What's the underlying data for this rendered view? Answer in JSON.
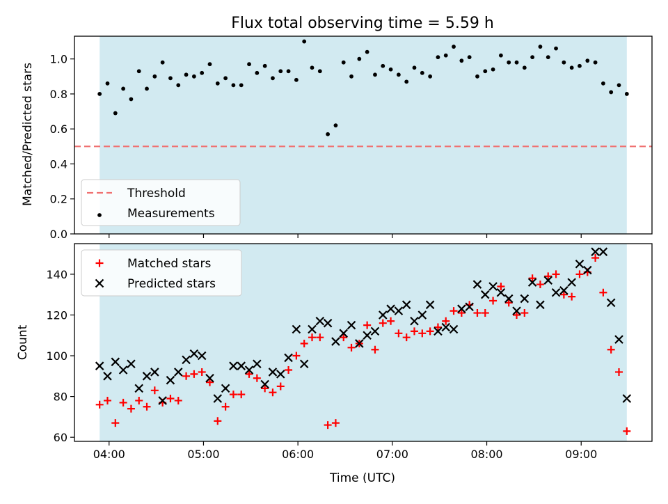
{
  "chart_data": [
    {
      "type": "scatter",
      "title": "Flux total observing time = 5.59 h",
      "xlabel": "",
      "ylabel": "Matched/Predicted stars",
      "ylim": [
        0,
        1.13
      ],
      "yticks": [
        "0.0",
        "0.2",
        "0.4",
        "0.6",
        "0.8",
        "1.0"
      ],
      "shaded_span": [
        "03:54",
        "09:29"
      ],
      "threshold": {
        "name": "Threshold",
        "value": 0.5,
        "color": "#f07070",
        "style": "dashed"
      },
      "series": [
        {
          "name": "Measurements",
          "color": "#000000",
          "marker": "dot",
          "x": [
            "03:54",
            "03:59",
            "04:04",
            "04:09",
            "04:14",
            "04:19",
            "04:24",
            "04:29",
            "04:34",
            "04:39",
            "04:44",
            "04:49",
            "04:54",
            "04:59",
            "05:04",
            "05:09",
            "05:14",
            "05:19",
            "05:24",
            "05:29",
            "05:34",
            "05:39",
            "05:44",
            "05:49",
            "05:54",
            "05:59",
            "06:04",
            "06:09",
            "06:14",
            "06:19",
            "06:24",
            "06:29",
            "06:34",
            "06:39",
            "06:44",
            "06:49",
            "06:54",
            "06:59",
            "07:04",
            "07:09",
            "07:14",
            "07:19",
            "07:24",
            "07:29",
            "07:34",
            "07:39",
            "07:44",
            "07:49",
            "07:54",
            "07:59",
            "08:04",
            "08:09",
            "08:14",
            "08:19",
            "08:24",
            "08:29",
            "08:34",
            "08:39",
            "08:44",
            "08:49",
            "08:54",
            "08:59",
            "09:04",
            "09:09",
            "09:14",
            "09:19",
            "09:24",
            "09:29"
          ],
          "y": [
            0.8,
            0.86,
            0.69,
            0.83,
            0.77,
            0.93,
            0.83,
            0.9,
            0.98,
            0.89,
            0.85,
            0.91,
            0.9,
            0.92,
            0.97,
            0.86,
            0.89,
            0.85,
            0.85,
            0.97,
            0.92,
            0.96,
            0.89,
            0.93,
            0.93,
            0.88,
            1.1,
            0.95,
            0.93,
            0.57,
            0.62,
            0.98,
            0.9,
            1.0,
            1.04,
            0.91,
            0.96,
            0.94,
            0.91,
            0.87,
            0.95,
            0.92,
            0.9,
            1.01,
            1.02,
            1.07,
            0.99,
            1.01,
            0.9,
            0.93,
            0.94,
            1.02,
            0.98,
            0.98,
            0.95,
            1.01,
            1.07,
            1.01,
            1.06,
            0.98,
            0.95,
            0.96,
            0.99,
            0.98,
            0.86,
            0.81,
            0.85,
            0.8
          ]
        }
      ],
      "legend": {
        "position": "lower-left",
        "entries": [
          "Threshold",
          "Measurements"
        ]
      },
      "grid": false
    },
    {
      "type": "scatter",
      "title": "",
      "xlabel": "Time (UTC)",
      "ylabel": "Count",
      "ylim": [
        58,
        155
      ],
      "yticks": [
        "60",
        "80",
        "100",
        "120",
        "140"
      ],
      "xticks": [
        "04:00",
        "05:00",
        "06:00",
        "07:00",
        "08:00",
        "09:00"
      ],
      "shaded_span": [
        "03:54",
        "09:29"
      ],
      "series": [
        {
          "name": "Matched stars",
          "color": "#ff0000",
          "marker": "plus",
          "x": [
            "03:54",
            "03:59",
            "04:04",
            "04:09",
            "04:14",
            "04:19",
            "04:24",
            "04:29",
            "04:34",
            "04:39",
            "04:44",
            "04:49",
            "04:54",
            "04:59",
            "05:04",
            "05:09",
            "05:14",
            "05:19",
            "05:24",
            "05:29",
            "05:34",
            "05:39",
            "05:44",
            "05:49",
            "05:54",
            "05:59",
            "06:04",
            "06:09",
            "06:14",
            "06:19",
            "06:24",
            "06:29",
            "06:34",
            "06:39",
            "06:44",
            "06:49",
            "06:54",
            "06:59",
            "07:04",
            "07:09",
            "07:14",
            "07:19",
            "07:24",
            "07:29",
            "07:34",
            "07:39",
            "07:44",
            "07:49",
            "07:54",
            "07:59",
            "08:04",
            "08:09",
            "08:14",
            "08:19",
            "08:24",
            "08:29",
            "08:34",
            "08:39",
            "08:44",
            "08:49",
            "08:54",
            "08:59",
            "09:04",
            "09:09",
            "09:14",
            "09:19",
            "09:24",
            "09:29"
          ],
          "y": [
            76,
            78,
            67,
            77,
            74,
            78,
            75,
            83,
            77,
            79,
            78,
            90,
            91,
            92,
            87,
            68,
            75,
            81,
            81,
            91,
            89,
            84,
            82,
            85,
            93,
            100,
            106,
            109,
            109,
            66,
            67,
            109,
            104,
            106,
            115,
            103,
            116,
            117,
            111,
            109,
            112,
            111,
            112,
            114,
            117,
            122,
            121,
            125,
            121,
            121,
            127,
            134,
            126,
            120,
            121,
            138,
            135,
            139,
            140,
            130,
            129,
            140,
            141,
            148,
            131,
            103,
            92,
            63
          ]
        },
        {
          "name": "Predicted stars",
          "color": "#000000",
          "marker": "x",
          "x": [
            "03:54",
            "03:59",
            "04:04",
            "04:09",
            "04:14",
            "04:19",
            "04:24",
            "04:29",
            "04:34",
            "04:39",
            "04:44",
            "04:49",
            "04:54",
            "04:59",
            "05:04",
            "05:09",
            "05:14",
            "05:19",
            "05:24",
            "05:29",
            "05:34",
            "05:39",
            "05:44",
            "05:49",
            "05:54",
            "05:59",
            "06:04",
            "06:09",
            "06:14",
            "06:19",
            "06:24",
            "06:29",
            "06:34",
            "06:39",
            "06:44",
            "06:49",
            "06:54",
            "06:59",
            "07:04",
            "07:09",
            "07:14",
            "07:19",
            "07:24",
            "07:29",
            "07:34",
            "07:39",
            "07:44",
            "07:49",
            "07:54",
            "07:59",
            "08:04",
            "08:09",
            "08:14",
            "08:19",
            "08:24",
            "08:29",
            "08:34",
            "08:39",
            "08:44",
            "08:49",
            "08:54",
            "08:59",
            "09:04",
            "09:09",
            "09:14",
            "09:19",
            "09:24",
            "09:29"
          ],
          "y": [
            95,
            90,
            97,
            93,
            96,
            84,
            90,
            92,
            78,
            88,
            92,
            98,
            101,
            100,
            89,
            79,
            84,
            95,
            95,
            93,
            96,
            86,
            92,
            91,
            99,
            113,
            96,
            113,
            117,
            116,
            107,
            111,
            115,
            106,
            110,
            112,
            120,
            123,
            122,
            125,
            117,
            120,
            125,
            112,
            114,
            113,
            123,
            124,
            135,
            130,
            134,
            131,
            128,
            122,
            128,
            136,
            125,
            137,
            131,
            132,
            136,
            145,
            142,
            151,
            151,
            126,
            108,
            79
          ]
        }
      ],
      "legend": {
        "position": "upper-left",
        "entries": [
          "Matched stars",
          "Predicted stars"
        ]
      },
      "grid": false
    }
  ],
  "colors": {
    "span_fill": "#add8e6",
    "threshold": "#f07070",
    "matched": "#ff0000",
    "predicted": "#000000"
  }
}
